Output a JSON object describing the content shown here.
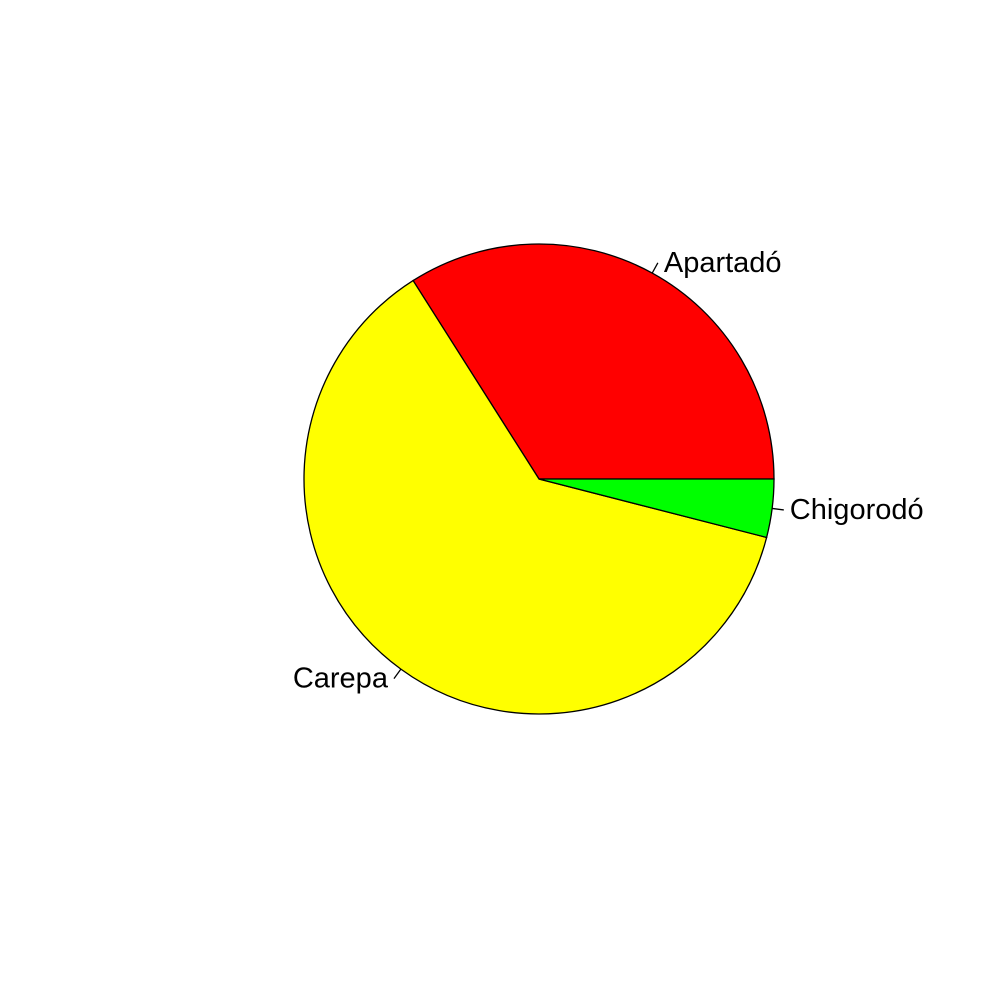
{
  "chart_data": {
    "type": "pie",
    "title": "",
    "slices": [
      {
        "label": "Apartadó",
        "value": 0.34,
        "color": "#FF0000"
      },
      {
        "label": "Carepa",
        "value": 0.62,
        "color": "#FFFF00"
      },
      {
        "label": "Chigorodó",
        "value": 0.04,
        "color": "#00FF00"
      }
    ],
    "start_angle_deg": 0,
    "direction": "counterclockwise",
    "border_color": "#000000",
    "background_color": "#FFFFFF"
  }
}
